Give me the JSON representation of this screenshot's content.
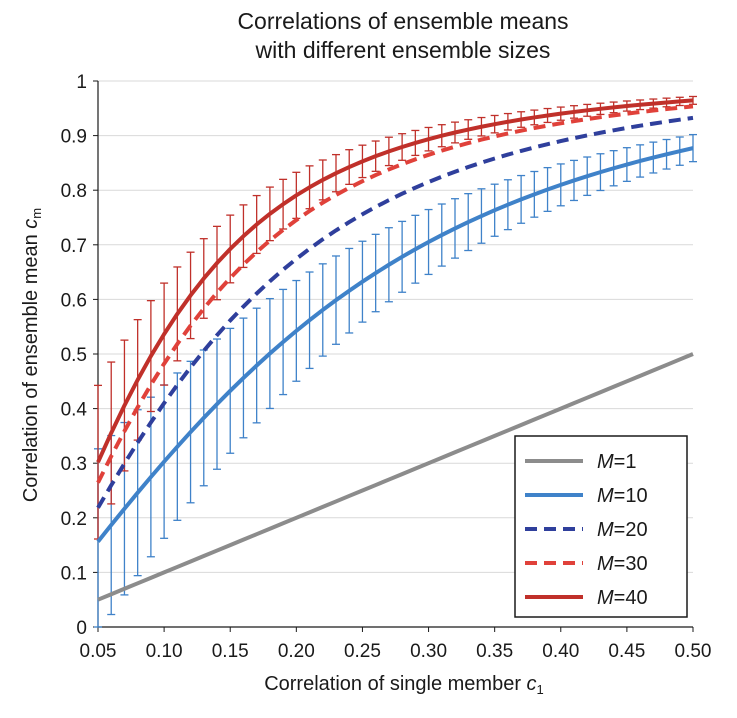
{
  "chart_data": {
    "type": "line",
    "title_lines": [
      "Correlations of ensemble means",
      "with different ensemble sizes"
    ],
    "xlabel": {
      "text": "Correlation of single member ",
      "var": "c",
      "sub": "1"
    },
    "ylabel": {
      "text": "Correlation of ensemble mean ",
      "var": "c",
      "sub": "m"
    },
    "xlim": [
      0.05,
      0.5
    ],
    "ylim": [
      0,
      1
    ],
    "x_ticks": [
      "0.05",
      "0.10",
      "0.15",
      "0.20",
      "0.25",
      "0.30",
      "0.35",
      "0.40",
      "0.45",
      "0.50"
    ],
    "y_ticks": [
      "0",
      "0.1",
      "0.2",
      "0.3",
      "0.4",
      "0.5",
      "0.6",
      "0.7",
      "0.8",
      "0.9",
      "1"
    ],
    "grid": "horizontal",
    "legend_position": "bottom-right",
    "series": [
      {
        "name_var": "M",
        "name_rest": "=1",
        "M": 1,
        "color": "#8c8c8c",
        "dash": "solid",
        "error_bars": false
      },
      {
        "name_var": "M",
        "name_rest": "=10",
        "M": 10,
        "color": "#3f82c9",
        "dash": "solid",
        "error_bars": true
      },
      {
        "name_var": "M",
        "name_rest": "=20",
        "M": 20,
        "color": "#2f3f9c",
        "dash": "dashed",
        "error_bars": false
      },
      {
        "name_var": "M",
        "name_rest": "=30",
        "M": 30,
        "color": "#e0413a",
        "dash": "dashed",
        "error_bars": false
      },
      {
        "name_var": "M",
        "name_rest": "=40",
        "M": 40,
        "color": "#c0302a",
        "dash": "solid",
        "error_bars": true
      }
    ],
    "x": [
      0.05,
      0.06,
      0.07,
      0.08,
      0.09,
      0.1,
      0.11,
      0.12,
      0.13,
      0.14,
      0.15,
      0.16,
      0.17,
      0.18,
      0.19,
      0.2,
      0.21,
      0.22,
      0.23,
      0.24,
      0.25,
      0.26,
      0.27,
      0.28,
      0.29,
      0.3,
      0.31,
      0.32,
      0.33,
      0.34,
      0.35,
      0.36,
      0.37,
      0.38,
      0.39,
      0.4,
      0.41,
      0.42,
      0.43,
      0.44,
      0.45,
      0.46,
      0.47,
      0.48,
      0.49,
      0.5
    ],
    "error_bar_note": "M=10 and M=40 show upper/lower error bars around each point",
    "error_spread": {
      "M10": 0.13,
      "M40": 0.13
    }
  }
}
